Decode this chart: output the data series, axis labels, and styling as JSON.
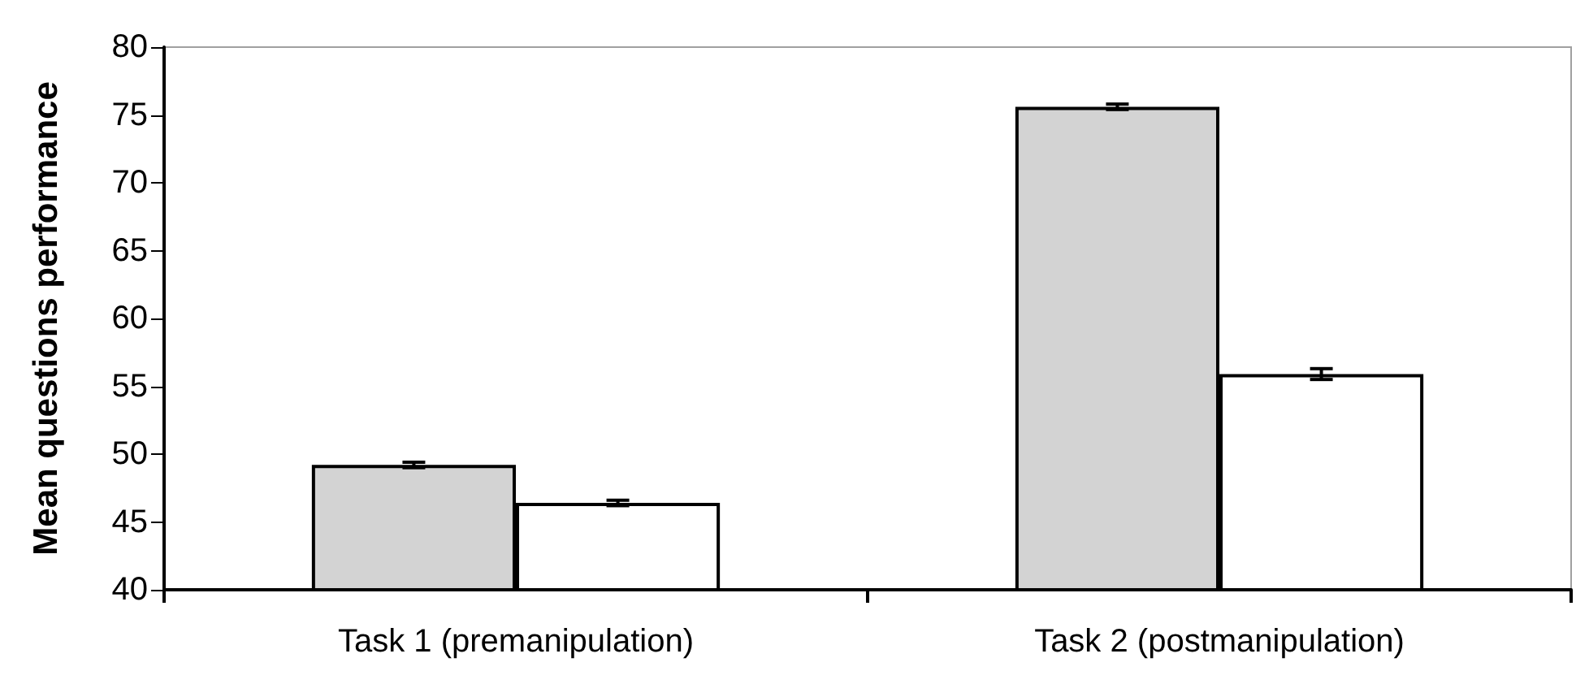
{
  "chart_data": {
    "type": "bar",
    "ylabel": "Mean questions performance",
    "categories": [
      "Task 1 (premanipulation)",
      "Task 2 (postmanipulation)"
    ],
    "series": [
      {
        "color": "#d3d3d3",
        "values": [
          49.2,
          75.6
        ],
        "errors": [
          0.2,
          0.2
        ]
      },
      {
        "color": "#ffffff",
        "values": [
          46.4,
          55.9
        ],
        "errors": [
          0.2,
          0.4
        ]
      }
    ],
    "ylim": [
      40,
      80
    ],
    "yticks": [
      40,
      45,
      50,
      55,
      60,
      65,
      70,
      75,
      80
    ]
  }
}
